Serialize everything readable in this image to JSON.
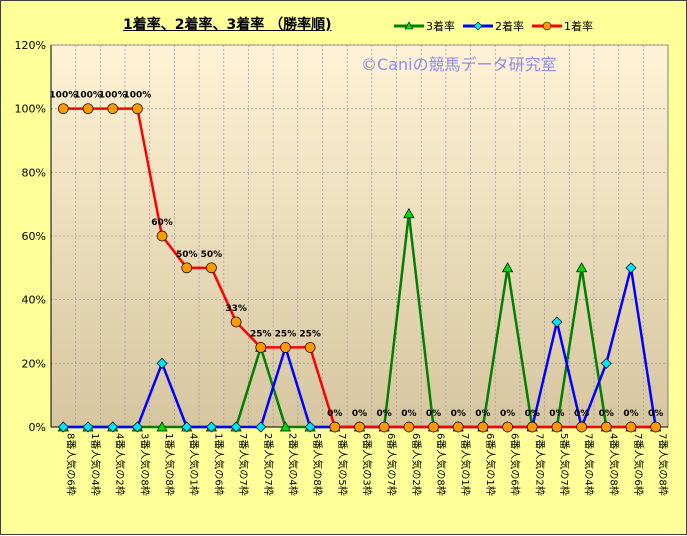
{
  "chart_data": {
    "type": "line",
    "title": "1着率、2着率、3着率 （勝率順)",
    "watermark": "©Caniの競馬データ研究室",
    "categories": [
      "8番人気の6枠",
      "1番人気の4枠",
      "4番人気の2枠",
      "3番人気の8枠",
      "1番人気の8枠",
      "4番人気の1枠",
      "1番人気の6枠",
      "7番人気の7枠",
      "2番人気の7枠",
      "2番人気の4枠",
      "5番人気の8枠",
      "7番人気の5枠",
      "6番人気の3枠",
      "6番人気の7枠",
      "6番人気の2枠",
      "6番人気の8枠",
      "7番人気の1枠",
      "6番人気の1枠",
      "6番人気の6枠",
      "7番人気の2枠",
      "5番人気の7枠",
      "7番人気の4枠",
      "4番人気の8枠",
      "7番人気の6枠",
      "7番人気の8枠"
    ],
    "ylim": [
      0,
      120
    ],
    "yticks": [
      "0%",
      "20%",
      "40%",
      "60%",
      "80%",
      "100%",
      "120%"
    ],
    "grid": true,
    "legend_position": "top-right",
    "series": [
      {
        "name": "3着率",
        "color": "#008000",
        "marker": "triangle",
        "marker_color": "#00E000",
        "values": [
          0,
          0,
          0,
          0,
          0,
          0,
          0,
          0,
          25,
          0,
          0,
          0,
          0,
          0,
          67,
          0,
          0,
          0,
          50,
          0,
          0,
          50,
          0,
          0,
          0
        ]
      },
      {
        "name": "2着率",
        "color": "#0000FF",
        "marker": "diamond",
        "marker_color": "#00E5FF",
        "values": [
          0,
          0,
          0,
          0,
          20,
          0,
          0,
          0,
          0,
          25,
          0,
          0,
          0,
          0,
          0,
          0,
          0,
          0,
          0,
          0,
          33,
          0,
          20,
          50,
          0
        ]
      },
      {
        "name": "1着率",
        "color": "#FF0000",
        "marker": "circle",
        "marker_color": "#FF9900",
        "values": [
          100,
          100,
          100,
          100,
          60,
          50,
          50,
          33,
          25,
          25,
          25,
          0,
          0,
          0,
          0,
          0,
          0,
          0,
          0,
          0,
          0,
          0,
          0,
          0,
          0
        ],
        "data_labels": [
          "100%",
          "100%",
          "100%",
          "100%",
          "60%",
          "50%",
          "50%",
          "33%",
          "25%",
          "25%",
          "25%",
          "0%",
          "0%",
          "0%",
          "0%",
          "0%",
          "0%",
          "0%",
          "0%",
          "0%",
          "0%",
          "0%",
          "0%",
          "0%",
          "0%"
        ]
      }
    ]
  }
}
